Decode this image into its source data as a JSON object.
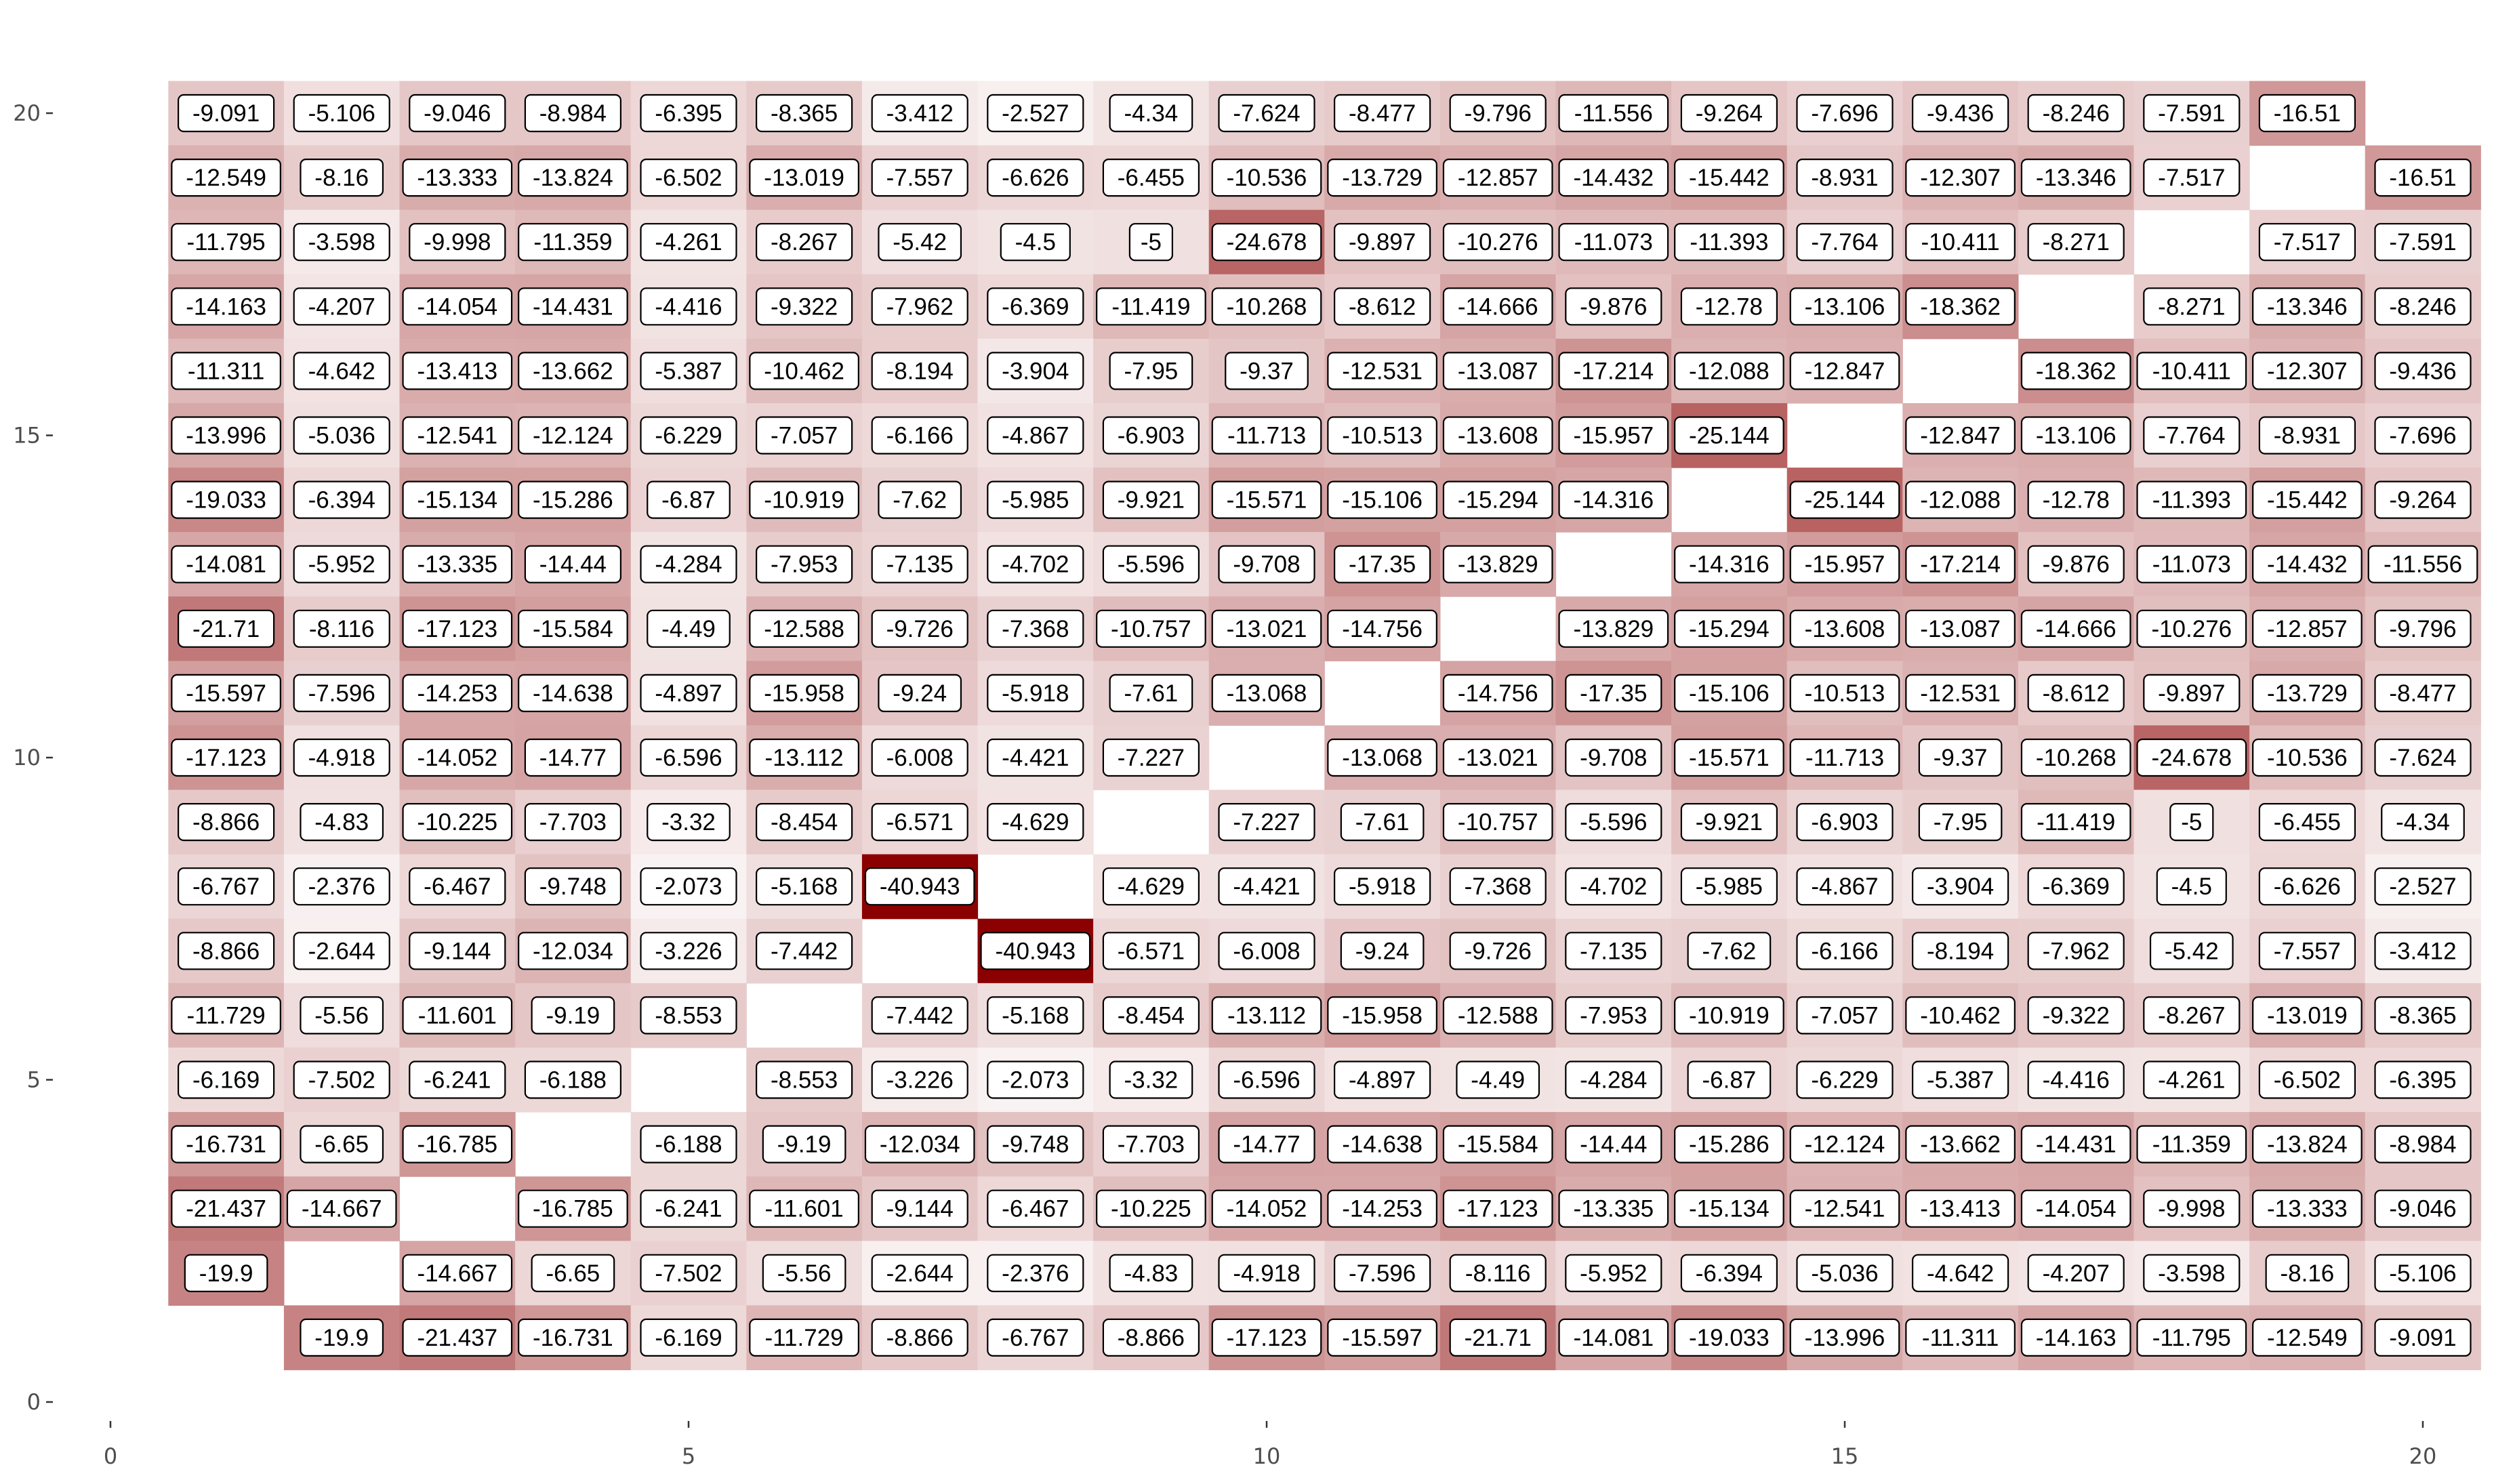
{
  "chart_data": {
    "type": "heatmap",
    "title": "",
    "xlabel": "",
    "ylabel": "",
    "xlim": [
      0,
      20.5
    ],
    "ylim": [
      0,
      20.5
    ],
    "x_ticks": [
      0,
      5,
      10,
      15,
      20
    ],
    "y_ticks": [
      0,
      5,
      10,
      15,
      20
    ],
    "grid": false,
    "legend": "none",
    "color_scale": {
      "low_value": -40.943,
      "high_value": 0,
      "low_color": "#8b0000",
      "high_color": "#ffffff"
    },
    "rows": [
      {
        "y": 20,
        "x_start": 1,
        "values": [
          -9.091,
          -5.106,
          -9.046,
          -8.984,
          -6.395,
          -8.365,
          -3.412,
          -2.527,
          -4.34,
          -7.624,
          -8.477,
          -9.796,
          -11.556,
          -9.264,
          -7.696,
          -9.436,
          -8.246,
          -7.591,
          -16.51,
          null
        ]
      },
      {
        "y": 19,
        "x_start": 1,
        "values": [
          -12.549,
          -8.16,
          -13.333,
          -13.824,
          -6.502,
          -13.019,
          -7.557,
          -6.626,
          -6.455,
          -10.536,
          -13.729,
          -12.857,
          -14.432,
          -15.442,
          -8.931,
          -12.307,
          -13.346,
          -7.517,
          null,
          -16.51
        ]
      },
      {
        "y": 18,
        "x_start": 1,
        "values": [
          -11.795,
          -3.598,
          -9.998,
          -11.359,
          -4.261,
          -8.267,
          -5.42,
          -4.5,
          -5,
          -24.678,
          -9.897,
          -10.276,
          -11.073,
          -11.393,
          -7.764,
          -10.411,
          -8.271,
          null,
          -7.517,
          -7.591
        ]
      },
      {
        "y": 17,
        "x_start": 1,
        "values": [
          -14.163,
          -4.207,
          -14.054,
          -14.431,
          -4.416,
          -9.322,
          -7.962,
          -6.369,
          -11.419,
          -10.268,
          -8.612,
          -14.666,
          -9.876,
          -12.78,
          -13.106,
          -18.362,
          null,
          -8.271,
          -13.346,
          -8.246
        ]
      },
      {
        "y": 16,
        "x_start": 1,
        "values": [
          -11.311,
          -4.642,
          -13.413,
          -13.662,
          -5.387,
          -10.462,
          -8.194,
          -3.904,
          -7.95,
          -9.37,
          -12.531,
          -13.087,
          -17.214,
          -12.088,
          -12.847,
          null,
          -18.362,
          -10.411,
          -12.307,
          -9.436
        ]
      },
      {
        "y": 15,
        "x_start": 1,
        "values": [
          -13.996,
          -5.036,
          -12.541,
          -12.124,
          -6.229,
          -7.057,
          -6.166,
          -4.867,
          -6.903,
          -11.713,
          -10.513,
          -13.608,
          -15.957,
          -25.144,
          null,
          -12.847,
          -13.106,
          -7.764,
          -8.931,
          -7.696
        ]
      },
      {
        "y": 14,
        "x_start": 1,
        "values": [
          -19.033,
          -6.394,
          -15.134,
          -15.286,
          -6.87,
          -10.919,
          -7.62,
          -5.985,
          -9.921,
          -15.571,
          -15.106,
          -15.294,
          -14.316,
          null,
          -25.144,
          -12.088,
          -12.78,
          -11.393,
          -15.442,
          -9.264
        ]
      },
      {
        "y": 13,
        "x_start": 1,
        "values": [
          -14.081,
          -5.952,
          -13.335,
          -14.44,
          -4.284,
          -7.953,
          -7.135,
          -4.702,
          -5.596,
          -9.708,
          -17.35,
          -13.829,
          null,
          -14.316,
          -15.957,
          -17.214,
          -9.876,
          -11.073,
          -14.432,
          -11.556
        ]
      },
      {
        "y": 12,
        "x_start": 1,
        "values": [
          -21.71,
          -8.116,
          -17.123,
          -15.584,
          -4.49,
          -12.588,
          -9.726,
          -7.368,
          -10.757,
          -13.021,
          -14.756,
          null,
          -13.829,
          -15.294,
          -13.608,
          -13.087,
          -14.666,
          -10.276,
          -12.857,
          -9.796
        ]
      },
      {
        "y": 11,
        "x_start": 1,
        "values": [
          -15.597,
          -7.596,
          -14.253,
          -14.638,
          -4.897,
          -15.958,
          -9.24,
          -5.918,
          -7.61,
          -13.068,
          null,
          -14.756,
          -17.35,
          -15.106,
          -10.513,
          -12.531,
          -8.612,
          -9.897,
          -13.729,
          -8.477
        ]
      },
      {
        "y": 10,
        "x_start": 1,
        "values": [
          -17.123,
          -4.918,
          -14.052,
          -14.77,
          -6.596,
          -13.112,
          -6.008,
          -4.421,
          -7.227,
          null,
          -13.068,
          -13.021,
          -9.708,
          -15.571,
          -11.713,
          -9.37,
          -10.268,
          -24.678,
          -10.536,
          -7.624
        ]
      },
      {
        "y": 9,
        "x_start": 1,
        "values": [
          -8.866,
          -4.83,
          -10.225,
          -7.703,
          -3.32,
          -8.454,
          -6.571,
          -4.629,
          null,
          -7.227,
          -7.61,
          -10.757,
          -5.596,
          -9.921,
          -6.903,
          -7.95,
          -11.419,
          -5,
          -6.455,
          -4.34
        ]
      },
      {
        "y": 8,
        "x_start": 1,
        "values": [
          -6.767,
          -2.376,
          -6.467,
          -9.748,
          -2.073,
          -5.168,
          -40.943,
          null,
          -4.629,
          -4.421,
          -5.918,
          -7.368,
          -4.702,
          -5.985,
          -4.867,
          -3.904,
          -6.369,
          -4.5,
          -6.626,
          -2.527
        ]
      },
      {
        "y": 7,
        "x_start": 1,
        "values": [
          -8.866,
          -2.644,
          -9.144,
          -12.034,
          -3.226,
          -7.442,
          null,
          -40.943,
          -6.571,
          -6.008,
          -9.24,
          -9.726,
          -7.135,
          -7.62,
          -6.166,
          -8.194,
          -7.962,
          -5.42,
          -7.557,
          -3.412
        ]
      },
      {
        "y": 6,
        "x_start": 1,
        "values": [
          -11.729,
          -5.56,
          -11.601,
          -9.19,
          -8.553,
          null,
          -7.442,
          -5.168,
          -8.454,
          -13.112,
          -15.958,
          -12.588,
          -7.953,
          -10.919,
          -7.057,
          -10.462,
          -9.322,
          -8.267,
          -13.019,
          -8.365
        ]
      },
      {
        "y": 5,
        "x_start": 1,
        "values": [
          -6.169,
          -7.502,
          -6.241,
          -6.188,
          null,
          -8.553,
          -3.226,
          -2.073,
          -3.32,
          -6.596,
          -4.897,
          -4.49,
          -4.284,
          -6.87,
          -6.229,
          -5.387,
          -4.416,
          -4.261,
          -6.502,
          -6.395
        ]
      },
      {
        "y": 4,
        "x_start": 1,
        "values": [
          -16.731,
          -6.65,
          -16.785,
          null,
          -6.188,
          -9.19,
          -12.034,
          -9.748,
          -7.703,
          -14.77,
          -14.638,
          -15.584,
          -14.44,
          -15.286,
          -12.124,
          -13.662,
          -14.431,
          -11.359,
          -13.824,
          -8.984
        ]
      },
      {
        "y": 3,
        "x_start": 1,
        "values": [
          -21.437,
          -14.667,
          null,
          -16.785,
          -6.241,
          -11.601,
          -9.144,
          -6.467,
          -10.225,
          -14.052,
          -14.253,
          -17.123,
          -13.335,
          -15.134,
          -12.541,
          -13.413,
          -14.054,
          -9.998,
          -13.333,
          -9.046
        ]
      },
      {
        "y": 2,
        "x_start": 1,
        "values": [
          -19.9,
          null,
          -14.667,
          -6.65,
          -7.502,
          -5.56,
          -2.644,
          -2.376,
          -4.83,
          -4.918,
          -7.596,
          -8.116,
          -5.952,
          -6.394,
          -5.036,
          -4.642,
          -4.207,
          -3.598,
          -8.16,
          -5.106
        ]
      },
      {
        "y": 1,
        "x_start": 2,
        "values": [
          -19.9,
          -21.437,
          -16.731,
          -6.169,
          -11.729,
          -8.866,
          -6.767,
          -8.866,
          -17.123,
          -15.597,
          -21.71,
          -14.081,
          -19.033,
          -13.996,
          -11.311,
          -14.163,
          -11.795,
          -12.549,
          -9.091
        ]
      }
    ]
  }
}
